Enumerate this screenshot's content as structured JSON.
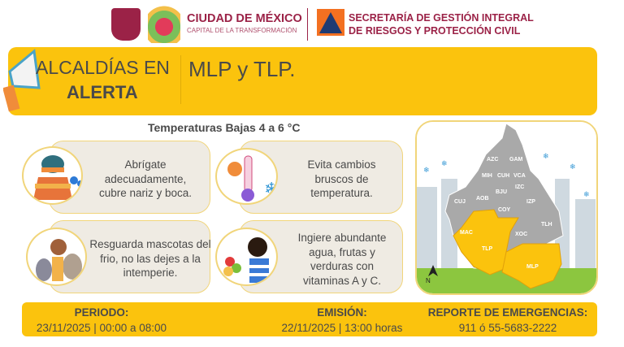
{
  "header": {
    "city_name": "CIUDAD DE MÉXICO",
    "city_tagline": "CAPITAL DE LA TRANSFORMACIÓN",
    "secretariat_line1": "SECRETARÍA DE GESTIÓN INTEGRAL",
    "secretariat_line2": "DE RIESGOS Y PROTECCIÓN CIVIL"
  },
  "alert": {
    "title_line1": "ALCALDÍAS EN",
    "title_line2": "ALERTA",
    "alcaldias": "MLP y TLP."
  },
  "temperature_title": "Temperaturas Bajas 4  a  6 °C",
  "recommendations": [
    {
      "icon": "winter-clothes-icon",
      "text": "Abrígate adecuadamente, cubre nariz y boca."
    },
    {
      "icon": "thermometer-icon",
      "text": "Evita cambios bruscos de temperatura."
    },
    {
      "icon": "pets-icon",
      "text": "Resguarda mascotas del frio, no las dejes a la intemperie."
    },
    {
      "icon": "water-fruits-icon",
      "text": "Ingiere abundante agua, frutas y verduras con vitaminas A y C."
    }
  ],
  "map": {
    "labels": [
      "AZC",
      "GAM",
      "MIH",
      "CUH",
      "VCA",
      "IZC",
      "BJU",
      "CUJ",
      "AOB",
      "IZP",
      "COY",
      "TLH",
      "MAC",
      "XOC",
      "TLP",
      "MLP"
    ],
    "north_label": "N",
    "highlight_color": "#fbc30d",
    "default_color": "#a9a9a9"
  },
  "footer": {
    "period_label": "PERIODO:",
    "period_value": "23/11/2025 | 00:00 a 08:00",
    "emission_label": "EMISIÓN:",
    "emission_value": "22/11/2025 | 13:00 horas",
    "emergency_label": "REPORTE DE EMERGENCIAS:",
    "emergency_value": "911 ó 55-5683-2222"
  },
  "colors": {
    "accent": "#fbc30d",
    "brand": "#9b2247"
  }
}
